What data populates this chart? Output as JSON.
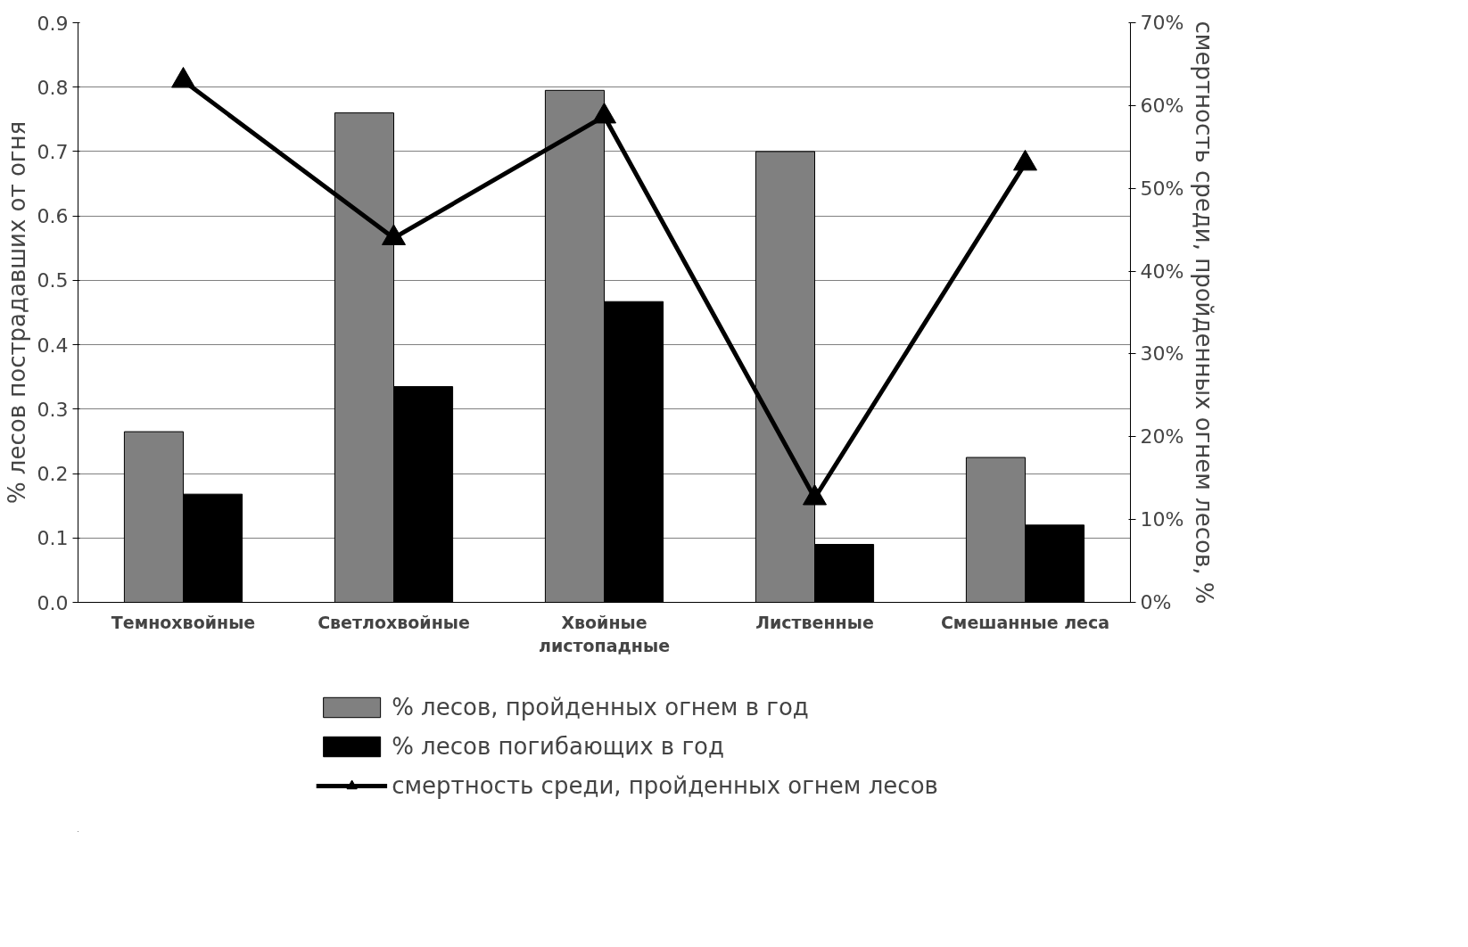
{
  "chart_data": {
    "type": "bar",
    "ylabel": "% лесов пострадавших от огня",
    "y2label": "смертность среди, пройденных огнем лесов, %",
    "categories": [
      "Темнохвойные",
      "Светлохвойные",
      "Хвойные листопадные",
      "Лиственные",
      "Смешанные леса"
    ],
    "series": [
      {
        "name": "% лесов, пройденных огнем в год",
        "color": "#808080",
        "values": [
          0.265,
          0.76,
          0.795,
          0.7,
          0.225
        ]
      },
      {
        "name": "% лесов погибающих в год",
        "color": "#000000",
        "values": [
          0.168,
          0.335,
          0.467,
          0.09,
          0.12
        ]
      },
      {
        "name": "смертность среди, пройденных огнем лесов",
        "type": "line",
        "axis": "y2",
        "color": "#000000",
        "marker": "triangle",
        "line_style": "solid",
        "values": [
          63,
          44,
          58.7,
          12.6,
          53
        ]
      }
    ],
    "ylim": [
      0,
      0.9
    ],
    "yticks": [
      {
        "value": 0,
        "label": "0.0"
      },
      {
        "value": 0.1,
        "label": "0.1"
      },
      {
        "value": 0.2,
        "label": "0.2"
      },
      {
        "value": 0.3,
        "label": "0.3"
      },
      {
        "value": 0.4,
        "label": "0.4"
      },
      {
        "value": 0.5,
        "label": "0.5"
      },
      {
        "value": 0.6,
        "label": "0.6"
      },
      {
        "value": 0.7,
        "label": "0.7"
      },
      {
        "value": 0.8,
        "label": "0.8"
      },
      {
        "value": 0.9,
        "label": "0.9"
      }
    ],
    "y2lim": [
      0,
      70
    ],
    "y2ticks": [
      {
        "value": 0,
        "label": "0%"
      },
      {
        "value": 10,
        "label": "10%"
      },
      {
        "value": 20,
        "label": "20%"
      },
      {
        "value": 30,
        "label": "30%"
      },
      {
        "value": 40,
        "label": "40%"
      },
      {
        "value": 50,
        "label": "50%"
      },
      {
        "value": 60,
        "label": "60%"
      },
      {
        "value": 70,
        "label": "70%"
      }
    ],
    "grid": "y",
    "legend": "bottom"
  }
}
